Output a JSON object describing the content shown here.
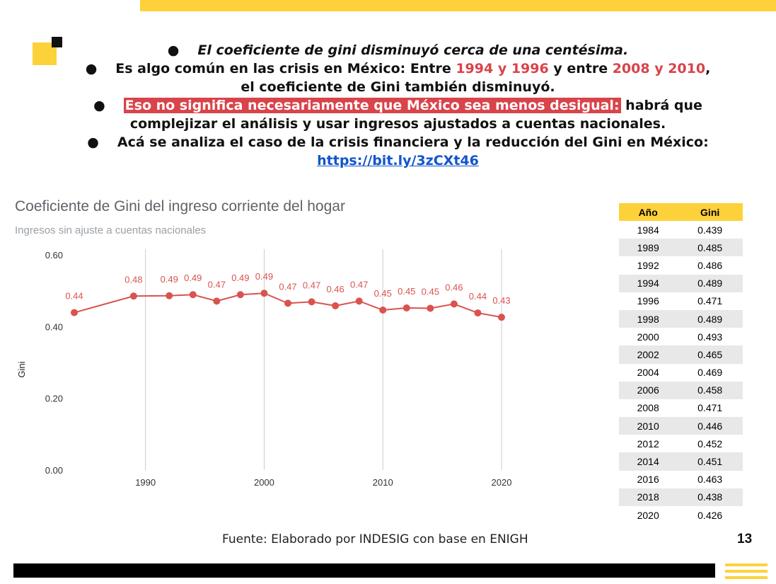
{
  "bullets": {
    "line1": "El coeficiente de gini disminuyó cerca de una centésima.",
    "line2a": "Es algo común en las crisis en México: Entre ",
    "line2b": "1994 y 1996",
    "line2c": " y entre ",
    "line2d": "2008 y 2010",
    "line2e": ",",
    "line3": "el coeficiente de Gini también disminuyó.",
    "line4a": "Eso no significa necesariamente que México sea menos desigual:",
    "line4b": " habrá que",
    "line5": "complejizar el análisis y usar ingresos ajustados a cuentas nacionales.",
    "line6": "Acá se analiza el caso de la crisis financiera y la reducción del Gini en México:",
    "link": "https://bit.ly/3zCXt46",
    "bullet_char": "●"
  },
  "chart_data": {
    "type": "line",
    "title": "Coeficiente de Gini del ingreso corriente del hogar",
    "subtitle": "Ingresos sin ajuste a cuentas nacionales",
    "xlabel": "",
    "ylabel": "Gini",
    "ylim": [
      0,
      0.6
    ],
    "xlim": [
      1984,
      2020
    ],
    "y_ticks": [
      "0.00",
      "0.20",
      "0.40",
      "0.60"
    ],
    "x_ticks": [
      "1990",
      "2000",
      "2010",
      "2020"
    ],
    "x": [
      1984,
      1989,
      1992,
      1994,
      1996,
      1998,
      2000,
      2002,
      2004,
      2006,
      2008,
      2010,
      2012,
      2014,
      2016,
      2018,
      2020
    ],
    "values": [
      0.439,
      0.485,
      0.486,
      0.489,
      0.471,
      0.489,
      0.493,
      0.465,
      0.469,
      0.458,
      0.471,
      0.446,
      0.452,
      0.451,
      0.463,
      0.438,
      0.426
    ],
    "data_labels": [
      "0.44",
      "0.48",
      "0.49",
      "0.49",
      "0.47",
      "0.49",
      "0.49",
      "0.47",
      "0.47",
      "0.46",
      "0.47",
      "0.45",
      "0.45",
      "0.45",
      "0.46",
      "0.44",
      "0.43"
    ],
    "line_color": "#d9534f",
    "grid": "vertical"
  },
  "table": {
    "headers": [
      "Año",
      "Gini"
    ],
    "rows": [
      [
        "1984",
        "0.439"
      ],
      [
        "1989",
        "0.485"
      ],
      [
        "1992",
        "0.486"
      ],
      [
        "1994",
        "0.489"
      ],
      [
        "1996",
        "0.471"
      ],
      [
        "1998",
        "0.489"
      ],
      [
        "2000",
        "0.493"
      ],
      [
        "2002",
        "0.465"
      ],
      [
        "2004",
        "0.469"
      ],
      [
        "2006",
        "0.458"
      ],
      [
        "2008",
        "0.471"
      ],
      [
        "2010",
        "0.446"
      ],
      [
        "2012",
        "0.452"
      ],
      [
        "2014",
        "0.451"
      ],
      [
        "2016",
        "0.463"
      ],
      [
        "2018",
        "0.438"
      ],
      [
        "2020",
        "0.426"
      ]
    ]
  },
  "source": "Fuente: Elaborado por INDESIG con base en ENIGH",
  "page_number": "13",
  "colors": {
    "accent": "#fdd13a",
    "highlight_red": "#d9434a",
    "link": "#1155cc"
  }
}
